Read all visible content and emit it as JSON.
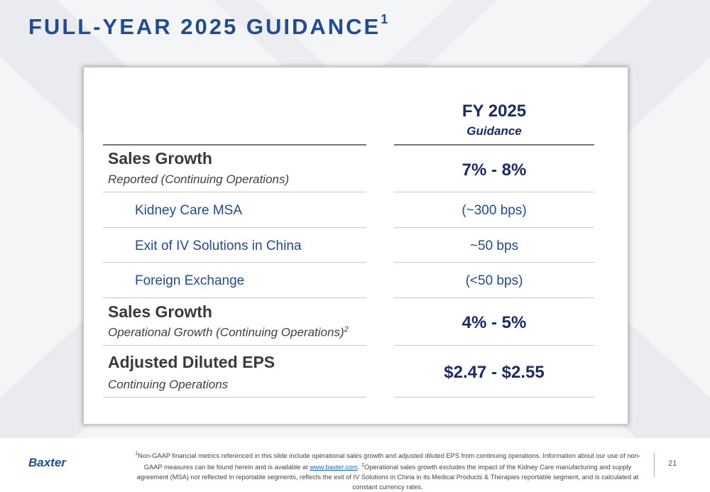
{
  "slide": {
    "title": "FULL-YEAR 2025 GUIDANCE",
    "title_superscript": "1",
    "page_number": "21",
    "logo_text": "Baxter"
  },
  "table": {
    "column_header": "FY 2025",
    "column_subheader": "Guidance",
    "rows": [
      {
        "label": "Sales Growth",
        "sublabel": "Reported (Continuing Operations)",
        "value": "7% - 8%"
      },
      {
        "label": "Kidney Care MSA",
        "value": "(~300 bps)"
      },
      {
        "label": "Exit of IV Solutions in China",
        "value": "~50 bps"
      },
      {
        "label": "Foreign Exchange",
        "value": "(<50 bps)"
      },
      {
        "label": "Sales Growth",
        "sublabel": "Operational Growth (Continuing Operations)",
        "sublabel_superscript": "2",
        "value": "4% - 5%"
      },
      {
        "label": "Adjusted Diluted EPS",
        "sublabel": "Continuing Operations",
        "value": "$2.47 - $2.55"
      }
    ]
  },
  "footnote": {
    "sup1": "1",
    "part1": "Non-GAAP financial metrics referenced in this slide include operational sales growth and adjusted diluted EPS from continuing operations. Information about our use of non-GAAP measures can be found herein and is available at ",
    "link": "www.baxter.com",
    "part2": ". ",
    "sup2": "2",
    "part3": "Operational sales growth excludes the impact of the Kidney Care manufacturing and supply agreement (MSA) not reflected in reportable segments, reflects the exit of IV Solutions in China in its Medical Products & Therapies reportable segment, and is calculated at constant currency rates."
  },
  "colors": {
    "brand_blue": "#1f4b99",
    "navy": "#1a2b6d"
  }
}
